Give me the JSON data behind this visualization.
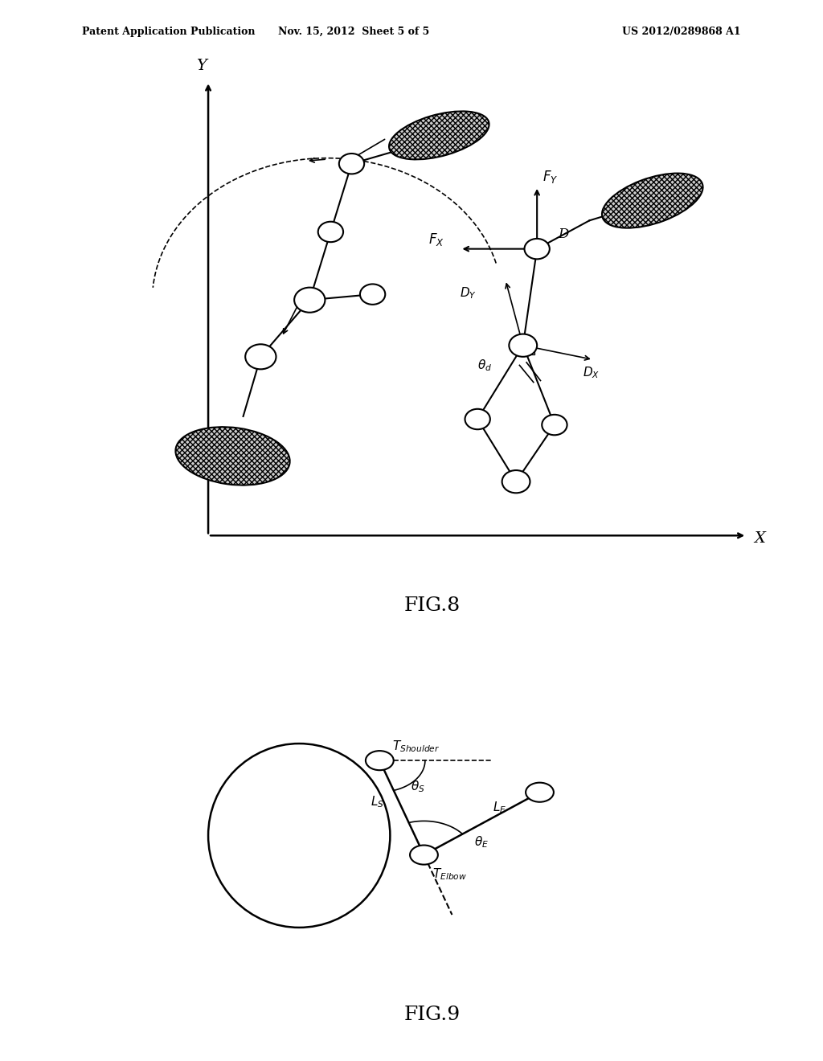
{
  "bg_color": "#ffffff",
  "header_left": "Patent Application Publication",
  "header_center": "Nov. 15, 2012  Sheet 5 of 5",
  "header_right": "US 2012/0289868 A1",
  "fig8_label": "FIG.8",
  "fig9_label": "FIG.9",
  "fig8_axis_x_label": "X",
  "fig8_axis_y_label": "Y",
  "line_color": "#000000",
  "joint_color": "#ffffff",
  "joint_edge_color": "#000000",
  "header_fontsize": 9,
  "fig_label_fontsize": 18,
  "axis_label_fontsize": 14,
  "annotation_fontsize": 12,
  "sub_annotation_fontsize": 11
}
